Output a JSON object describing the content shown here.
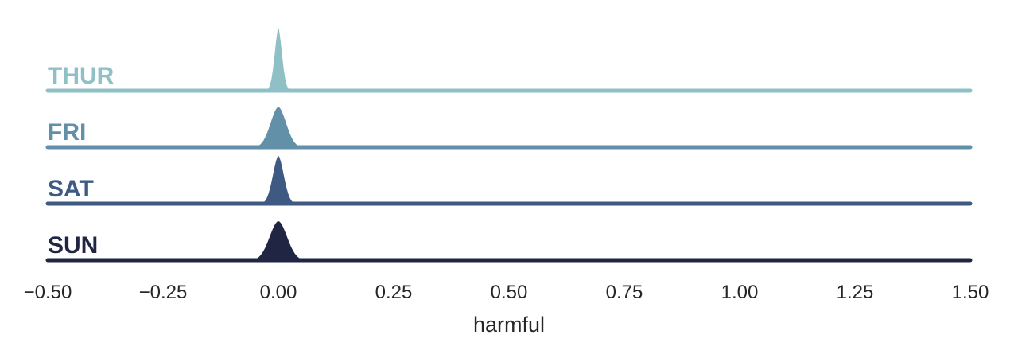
{
  "chart_data": {
    "type": "area",
    "title": "",
    "xlabel": "harmful",
    "ylabel": "",
    "xlim": [
      -0.5,
      1.5
    ],
    "xticks": [
      -0.5,
      -0.25,
      0.0,
      0.25,
      0.5,
      0.75,
      1.0,
      1.25,
      1.5
    ],
    "xtick_labels": [
      "−0.50",
      "−0.25",
      "0.00",
      "0.25",
      "0.50",
      "0.75",
      "1.00",
      "1.25",
      "1.50"
    ],
    "grid": false,
    "legend": "none",
    "series": [
      {
        "name": "THUR",
        "color": "#8fc0c5",
        "peak_x": 0.0,
        "peak_height": 1.0,
        "spread": 0.009
      },
      {
        "name": "FRI",
        "color": "#6190a8",
        "peak_x": 0.0,
        "peak_height": 0.63,
        "spread": 0.018
      },
      {
        "name": "SAT",
        "color": "#3f5a82",
        "peak_x": 0.0,
        "peak_height": 0.75,
        "spread": 0.013
      },
      {
        "name": "SUN",
        "color": "#1f2543",
        "peak_x": 0.0,
        "peak_height": 0.61,
        "spread": 0.02
      }
    ]
  }
}
